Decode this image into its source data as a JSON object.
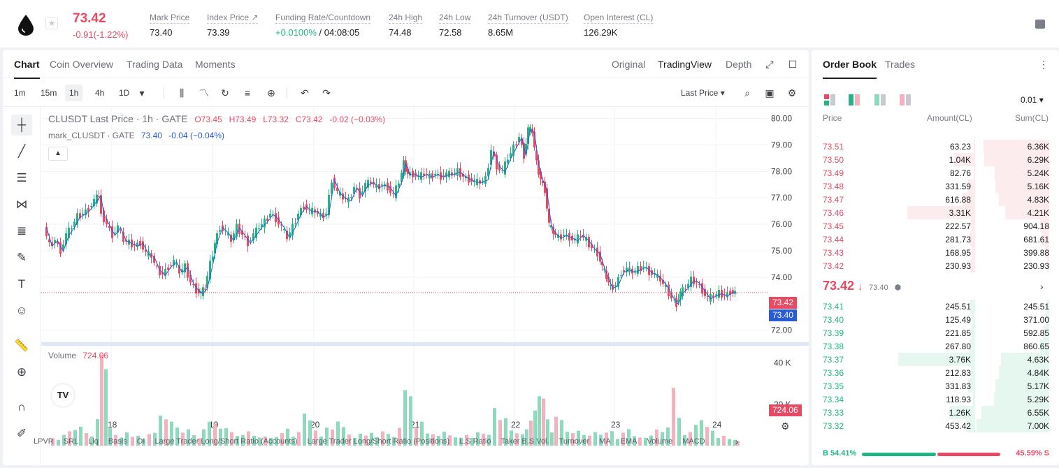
{
  "ticker": {
    "last_price": "73.42",
    "change": "-0.91(-1.22%)",
    "stats": [
      {
        "label": "Mark Price",
        "value": "73.40"
      },
      {
        "label": "Index Price ↗",
        "value": "73.39"
      },
      {
        "label": "Funding Rate/Countdown",
        "rate": "+0.0100%",
        "countdown": "/ 04:08:05"
      },
      {
        "label": "24h High",
        "value": "74.48"
      },
      {
        "label": "24h Low",
        "value": "72.58"
      },
      {
        "label": "24h Turnover (USDT)",
        "value": "8.65M"
      },
      {
        "label": "Open Interest (CL)",
        "value": "126.29K"
      }
    ]
  },
  "chart_tabs": [
    "Chart",
    "Coin Overview",
    "Trading Data",
    "Moments"
  ],
  "chart_views": [
    "Original",
    "TradingView",
    "Depth"
  ],
  "timeframes": [
    "1m",
    "15m",
    "1h",
    "4h",
    "1D"
  ],
  "price_source": "Last Price",
  "legend": {
    "symbol": "CLUSDT Last Price · 1h · GATE",
    "open": "O73.45",
    "high": "H73.49",
    "low": "L73.32",
    "close": "C73.42",
    "chg": "-0.02 (−0.03%)",
    "mark_label": "mark_CLUSDT · GATE",
    "mark_value": "73.40",
    "mark_chg": "-0.04 (−0.04%)"
  },
  "volume_legend": {
    "label": "Volume",
    "value": "724.06"
  },
  "price_badges": {
    "last": "73.42",
    "mark": "73.40",
    "volume": "724.06"
  },
  "indicators": [
    "LPVR",
    "SRL",
    "Liq",
    "Basis",
    "OI",
    "Large Trader Long/Short Ratio (Accounts)",
    "Large Trader Long/Short Ratio (Positions)",
    "L.S Ratio",
    "Taker B.S Vol.",
    "Turnover",
    "MA",
    "EMA",
    "Volume",
    "MACD"
  ],
  "chart_data": {
    "type": "candlestick",
    "interval": "1h",
    "x_tick_labels": [
      "18",
      "19",
      "20",
      "21",
      "22",
      "23",
      "24"
    ],
    "price_axis_ticks": [
      "80.00",
      "79.00",
      "78.00",
      "77.00",
      "76.00",
      "75.00",
      "74.00",
      "72.00"
    ],
    "volume_axis_ticks": [
      "40 K",
      "20 K"
    ],
    "ylim": [
      71.7,
      80.2
    ],
    "volume_ylim": [
      0,
      47000
    ],
    "price_path": [
      [
        0,
        75.9
      ],
      [
        8,
        75.2
      ],
      [
        16,
        75.4
      ],
      [
        24,
        75.0
      ],
      [
        32,
        75.6
      ],
      [
        40,
        75.9
      ],
      [
        48,
        76.3
      ],
      [
        56,
        76.4
      ],
      [
        64,
        76.6
      ],
      [
        72,
        76.9
      ],
      [
        78,
        77.1
      ],
      [
        82,
        76.4
      ],
      [
        90,
        76.0
      ],
      [
        98,
        75.6
      ],
      [
        106,
        75.9
      ],
      [
        114,
        75.4
      ],
      [
        122,
        75.3
      ],
      [
        130,
        75.2
      ],
      [
        138,
        75.3
      ],
      [
        146,
        74.9
      ],
      [
        154,
        74.8
      ],
      [
        162,
        74.3
      ],
      [
        170,
        74.1
      ],
      [
        178,
        74.4
      ],
      [
        186,
        74.6
      ],
      [
        194,
        74.2
      ],
      [
        202,
        74.4
      ],
      [
        210,
        73.8
      ],
      [
        218,
        73.5
      ],
      [
        224,
        73.4
      ],
      [
        230,
        73.6
      ],
      [
        238,
        74.5
      ],
      [
        244,
        75.3
      ],
      [
        252,
        75.9
      ],
      [
        260,
        75.7
      ],
      [
        268,
        75.4
      ],
      [
        276,
        75.9
      ],
      [
        284,
        75.6
      ],
      [
        292,
        75.3
      ],
      [
        300,
        75.6
      ],
      [
        308,
        75.9
      ],
      [
        316,
        76.1
      ],
      [
        324,
        76.4
      ],
      [
        332,
        76.2
      ],
      [
        340,
        75.9
      ],
      [
        348,
        75.5
      ],
      [
        356,
        75.9
      ],
      [
        364,
        76.4
      ],
      [
        372,
        76.7
      ],
      [
        380,
        76.5
      ],
      [
        388,
        76.5
      ],
      [
        396,
        76.3
      ],
      [
        404,
        76.4
      ],
      [
        412,
        77.7
      ],
      [
        420,
        77.2
      ],
      [
        428,
        77.0
      ],
      [
        436,
        76.9
      ],
      [
        444,
        77.4
      ],
      [
        452,
        77.1
      ],
      [
        460,
        77.5
      ],
      [
        468,
        77.6
      ],
      [
        476,
        77.4
      ],
      [
        484,
        77.5
      ],
      [
        492,
        77.4
      ],
      [
        500,
        77.1
      ],
      [
        508,
        77.6
      ],
      [
        514,
        78.3
      ],
      [
        520,
        77.9
      ],
      [
        528,
        77.9
      ],
      [
        536,
        77.8
      ],
      [
        544,
        77.9
      ],
      [
        552,
        77.8
      ],
      [
        560,
        77.9
      ],
      [
        568,
        77.8
      ],
      [
        576,
        77.9
      ],
      [
        584,
        77.9
      ],
      [
        592,
        78.0
      ],
      [
        600,
        77.8
      ],
      [
        608,
        77.7
      ],
      [
        616,
        77.6
      ],
      [
        624,
        77.6
      ],
      [
        632,
        77.7
      ],
      [
        640,
        78.8
      ],
      [
        648,
        78.2
      ],
      [
        656,
        78.0
      ],
      [
        664,
        78.5
      ],
      [
        672,
        78.9
      ],
      [
        680,
        79.3
      ],
      [
        686,
        78.6
      ],
      [
        692,
        79.6
      ],
      [
        698,
        79.5
      ],
      [
        704,
        78.3
      ],
      [
        710,
        77.7
      ],
      [
        716,
        77.3
      ],
      [
        722,
        76.0
      ],
      [
        728,
        75.7
      ],
      [
        736,
        75.5
      ],
      [
        744,
        75.6
      ],
      [
        752,
        75.5
      ],
      [
        760,
        75.4
      ],
      [
        768,
        75.6
      ],
      [
        776,
        75.4
      ],
      [
        784,
        75.1
      ],
      [
        792,
        74.9
      ],
      [
        798,
        74.4
      ],
      [
        804,
        74.0
      ],
      [
        810,
        73.6
      ],
      [
        818,
        73.7
      ],
      [
        826,
        74.2
      ],
      [
        834,
        74.3
      ],
      [
        842,
        74.2
      ],
      [
        850,
        74.3
      ],
      [
        858,
        74.4
      ],
      [
        866,
        74.2
      ],
      [
        874,
        74.1
      ],
      [
        882,
        73.9
      ],
      [
        890,
        73.6
      ],
      [
        898,
        73.2
      ],
      [
        904,
        73.0
      ],
      [
        910,
        73.4
      ],
      [
        918,
        73.6
      ],
      [
        926,
        73.9
      ],
      [
        934,
        73.8
      ],
      [
        942,
        73.5
      ],
      [
        950,
        73.2
      ],
      [
        958,
        73.3
      ],
      [
        966,
        73.4
      ],
      [
        974,
        73.3
      ],
      [
        982,
        73.45
      ],
      [
        988,
        73.42
      ]
    ],
    "volume_bars": [
      [
        8,
        3500
      ],
      [
        16,
        2800
      ],
      [
        24,
        5200
      ],
      [
        32,
        6900
      ],
      [
        40,
        7600
      ],
      [
        48,
        9100
      ],
      [
        56,
        6100
      ],
      [
        64,
        4400
      ],
      [
        72,
        12800
      ],
      [
        78,
        44000
      ],
      [
        84,
        37000
      ],
      [
        90,
        8400
      ],
      [
        98,
        5200
      ],
      [
        106,
        3900
      ],
      [
        114,
        6400
      ],
      [
        122,
        4300
      ],
      [
        130,
        4800
      ],
      [
        138,
        3100
      ],
      [
        146,
        5600
      ],
      [
        154,
        6200
      ],
      [
        162,
        14600
      ],
      [
        170,
        12700
      ],
      [
        178,
        11600
      ],
      [
        186,
        8800
      ],
      [
        194,
        6300
      ],
      [
        202,
        7900
      ],
      [
        210,
        5100
      ],
      [
        218,
        3600
      ],
      [
        224,
        7900
      ],
      [
        232,
        11600
      ],
      [
        240,
        10800
      ],
      [
        248,
        8200
      ],
      [
        256,
        8400
      ],
      [
        264,
        6500
      ],
      [
        272,
        4700
      ],
      [
        280,
        5200
      ],
      [
        288,
        6900
      ],
      [
        296,
        4800
      ],
      [
        304,
        3900
      ],
      [
        312,
        4400
      ],
      [
        320,
        3700
      ],
      [
        328,
        4200
      ],
      [
        336,
        6100
      ],
      [
        344,
        8200
      ],
      [
        352,
        4300
      ],
      [
        360,
        6600
      ],
      [
        368,
        15500
      ],
      [
        376,
        12200
      ],
      [
        384,
        7300
      ],
      [
        392,
        4400
      ],
      [
        400,
        8700
      ],
      [
        408,
        7800
      ],
      [
        416,
        11700
      ],
      [
        424,
        9000
      ],
      [
        432,
        5400
      ],
      [
        440,
        3700
      ],
      [
        448,
        5800
      ],
      [
        456,
        4900
      ],
      [
        464,
        6200
      ],
      [
        472,
        4100
      ],
      [
        480,
        6900
      ],
      [
        488,
        5600
      ],
      [
        496,
        4200
      ],
      [
        504,
        8600
      ],
      [
        512,
        26900
      ],
      [
        520,
        23900
      ],
      [
        528,
        8900
      ],
      [
        536,
        11600
      ],
      [
        544,
        5900
      ],
      [
        552,
        5500
      ],
      [
        560,
        4700
      ],
      [
        568,
        6800
      ],
      [
        576,
        5000
      ],
      [
        584,
        4000
      ],
      [
        592,
        3800
      ],
      [
        600,
        5200
      ],
      [
        608,
        3700
      ],
      [
        616,
        6500
      ],
      [
        624,
        5800
      ],
      [
        632,
        5200
      ],
      [
        640,
        18200
      ],
      [
        648,
        12400
      ],
      [
        656,
        13300
      ],
      [
        664,
        7300
      ],
      [
        672,
        6000
      ],
      [
        680,
        5500
      ],
      [
        686,
        7900
      ],
      [
        692,
        12100
      ],
      [
        698,
        17000
      ],
      [
        704,
        23900
      ],
      [
        710,
        22800
      ],
      [
        716,
        12700
      ],
      [
        722,
        6400
      ],
      [
        728,
        14000
      ],
      [
        736,
        12400
      ],
      [
        744,
        6700
      ],
      [
        752,
        6100
      ],
      [
        760,
        7200
      ],
      [
        768,
        5200
      ],
      [
        776,
        4900
      ],
      [
        784,
        6600
      ],
      [
        792,
        5300
      ],
      [
        800,
        6300
      ],
      [
        808,
        7000
      ],
      [
        816,
        3200
      ],
      [
        824,
        6300
      ],
      [
        832,
        8000
      ],
      [
        840,
        4600
      ],
      [
        848,
        3900
      ],
      [
        856,
        3800
      ],
      [
        864,
        4900
      ],
      [
        872,
        7800
      ],
      [
        880,
        6600
      ],
      [
        888,
        8800
      ],
      [
        896,
        28000
      ],
      [
        904,
        13400
      ],
      [
        912,
        5100
      ],
      [
        920,
        6600
      ],
      [
        928,
        10100
      ],
      [
        936,
        12300
      ],
      [
        944,
        9100
      ],
      [
        952,
        7200
      ],
      [
        960,
        3700
      ],
      [
        968,
        4800
      ],
      [
        976,
        3200
      ],
      [
        984,
        2800
      ],
      [
        988,
        2300
      ]
    ]
  },
  "order_book": {
    "tabs": [
      "Order Book",
      "Trades"
    ],
    "precision": "0.01",
    "headers": [
      "Price",
      "Amount(CL)",
      "Sum(CL)"
    ],
    "asks": [
      {
        "price": "73.51",
        "amount": "63.23",
        "sum": "6.36K",
        "amt": 63.23,
        "sumv": 6360
      },
      {
        "price": "73.50",
        "amount": "1.04K",
        "sum": "6.29K",
        "amt": 1040,
        "sumv": 6290
      },
      {
        "price": "73.49",
        "amount": "82.76",
        "sum": "5.24K",
        "amt": 82.76,
        "sumv": 5240
      },
      {
        "price": "73.48",
        "amount": "331.59",
        "sum": "5.16K",
        "amt": 331.59,
        "sumv": 5160
      },
      {
        "price": "73.47",
        "amount": "616.88",
        "sum": "4.83K",
        "amt": 616.88,
        "sumv": 4830
      },
      {
        "price": "73.46",
        "amount": "3.31K",
        "sum": "4.21K",
        "amt": 3310,
        "sumv": 4210
      },
      {
        "price": "73.45",
        "amount": "222.57",
        "sum": "904.18",
        "amt": 222.57,
        "sumv": 904.18
      },
      {
        "price": "73.44",
        "amount": "281.73",
        "sum": "681.61",
        "amt": 281.73,
        "sumv": 681.61
      },
      {
        "price": "73.43",
        "amount": "168.95",
        "sum": "399.88",
        "amt": 168.95,
        "sumv": 399.88
      },
      {
        "price": "73.42",
        "amount": "230.93",
        "sum": "230.93",
        "amt": 230.93,
        "sumv": 230.93
      }
    ],
    "mid_price": "73.42",
    "mid_mark": "73.40",
    "bids": [
      {
        "price": "73.41",
        "amount": "245.51",
        "sum": "245.51",
        "amt": 245.51,
        "sumv": 245.51
      },
      {
        "price": "73.40",
        "amount": "125.49",
        "sum": "371.00",
        "amt": 125.49,
        "sumv": 371
      },
      {
        "price": "73.39",
        "amount": "221.85",
        "sum": "592.85",
        "amt": 221.85,
        "sumv": 592.85
      },
      {
        "price": "73.38",
        "amount": "267.80",
        "sum": "860.65",
        "amt": 267.8,
        "sumv": 860.65
      },
      {
        "price": "73.37",
        "amount": "3.76K",
        "sum": "4.63K",
        "amt": 3760,
        "sumv": 4630
      },
      {
        "price": "73.36",
        "amount": "212.83",
        "sum": "4.84K",
        "amt": 212.83,
        "sumv": 4840
      },
      {
        "price": "73.35",
        "amount": "331.83",
        "sum": "5.17K",
        "amt": 331.83,
        "sumv": 5170
      },
      {
        "price": "73.34",
        "amount": "118.93",
        "sum": "5.29K",
        "amt": 118.93,
        "sumv": 5290
      },
      {
        "price": "73.33",
        "amount": "1.26K",
        "sum": "6.55K",
        "amt": 1260,
        "sumv": 6550
      },
      {
        "price": "73.32",
        "amount": "453.42",
        "sum": "7.00K",
        "amt": 453.42,
        "sumv": 7000
      }
    ],
    "buy_ratio": "B 54.41%",
    "sell_ratio": "45.59% S",
    "buy_pct": 54.41
  },
  "colors": {
    "up": "#22b486",
    "down": "#e74a63",
    "mark": "#2a5bd7"
  }
}
